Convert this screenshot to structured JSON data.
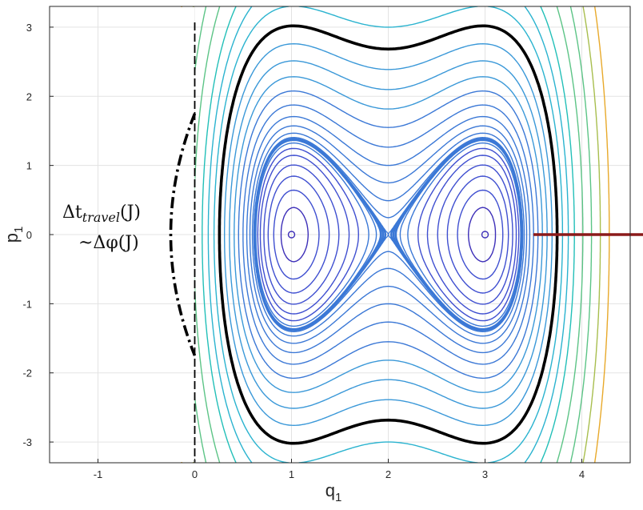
{
  "chart_data": {
    "type": "line",
    "subtype": "phase-portrait-contour",
    "title": "",
    "xlabel": "q",
    "xlabel_sub": "1",
    "ylabel": "p",
    "ylabel_sub": "1",
    "xlim": [
      -1.5,
      4.5
    ],
    "ylim": [
      -3.3,
      3.3
    ],
    "xticks": [
      -1,
      0,
      1,
      2,
      3,
      4
    ],
    "yticks": [
      3,
      2,
      1,
      0,
      -1,
      -2,
      -3
    ],
    "grid": true,
    "box": true,
    "centers": [
      [
        1,
        0
      ],
      [
        3,
        0
      ]
    ],
    "saddle": [
      2,
      0
    ],
    "separatrix_energy": 0,
    "contour_levels_inner": [
      -0.88,
      -0.75,
      -0.6,
      -0.45,
      -0.3,
      -0.18,
      -0.08,
      -0.03
    ],
    "contour_levels_lobe_edge": [
      -0.012,
      -0.006,
      -0.002
    ],
    "contour_levels_outer": [
      0.03,
      0.12,
      0.28,
      0.5,
      0.8,
      1.2,
      1.65,
      2.2,
      2.85,
      3.6,
      4.5,
      5.6,
      6.9
    ],
    "contour_levels_far": [
      9.0,
      11.5,
      14.5,
      18.0
    ],
    "highlighted_level": 3.6,
    "colormap": [
      "#3d2fb8",
      "#3f4fd0",
      "#3b78d6",
      "#3a98d8",
      "#2ab3cf",
      "#22bfb8",
      "#5cc486",
      "#a8be4e",
      "#e8a92a"
    ],
    "highlight_color": "#000000",
    "marker_line_color": "#8b1a1a",
    "boundary_line": {
      "x": 0
    },
    "marker_line": {
      "x_from": 3.5,
      "x_to": 4.5,
      "y": 0
    },
    "annotations": [
      {
        "text": "Δt",
        "sub": "travel",
        "tail": "(J)"
      },
      {
        "text": "~Δφ(J)"
      }
    ]
  }
}
